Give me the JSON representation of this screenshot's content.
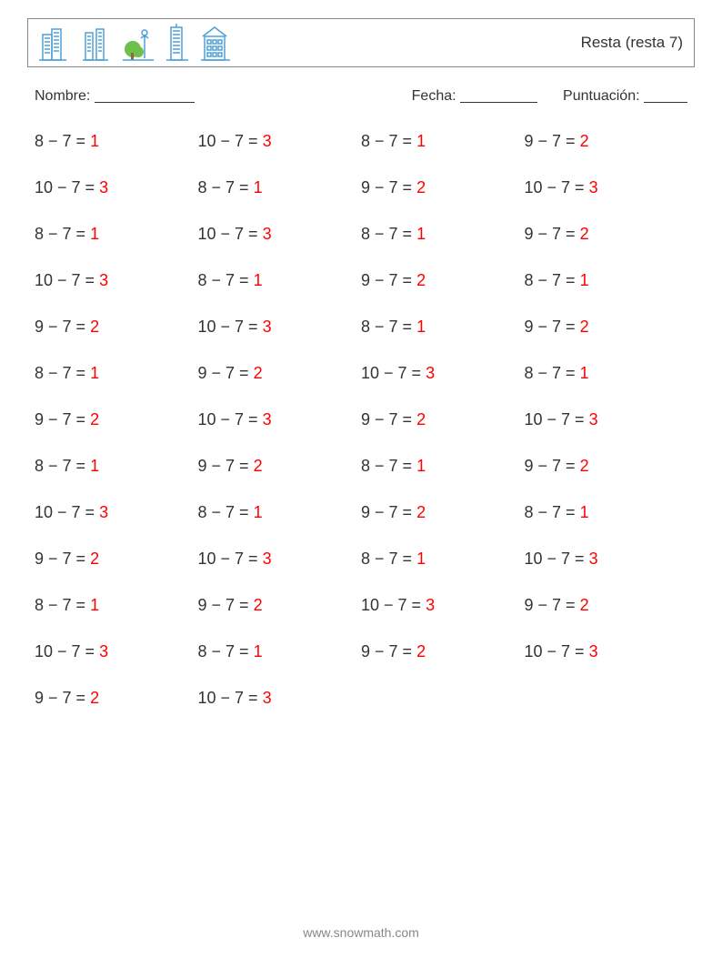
{
  "header": {
    "title": "Resta (resta 7)"
  },
  "meta": {
    "name_label": "Nombre:",
    "date_label": "Fecha:",
    "score_label": "Puntuación:",
    "name_blank_width": 110,
    "date_blank_width": 85,
    "score_blank_width": 48
  },
  "icons": {
    "stroke": "#4da0d8",
    "tree_fill": "#6fbf4b"
  },
  "problems_style": {
    "equation_color": "#333333",
    "answer_color": "#ff0000",
    "font_size": 18
  },
  "problems": [
    [
      {
        "a": 8,
        "b": 7,
        "ans": 1
      },
      {
        "a": 10,
        "b": 7,
        "ans": 3
      },
      {
        "a": 8,
        "b": 7,
        "ans": 1
      },
      {
        "a": 9,
        "b": 7,
        "ans": 2
      }
    ],
    [
      {
        "a": 10,
        "b": 7,
        "ans": 3
      },
      {
        "a": 8,
        "b": 7,
        "ans": 1
      },
      {
        "a": 9,
        "b": 7,
        "ans": 2
      },
      {
        "a": 10,
        "b": 7,
        "ans": 3
      }
    ],
    [
      {
        "a": 8,
        "b": 7,
        "ans": 1
      },
      {
        "a": 10,
        "b": 7,
        "ans": 3
      },
      {
        "a": 8,
        "b": 7,
        "ans": 1
      },
      {
        "a": 9,
        "b": 7,
        "ans": 2
      }
    ],
    [
      {
        "a": 10,
        "b": 7,
        "ans": 3
      },
      {
        "a": 8,
        "b": 7,
        "ans": 1
      },
      {
        "a": 9,
        "b": 7,
        "ans": 2
      },
      {
        "a": 8,
        "b": 7,
        "ans": 1
      }
    ],
    [
      {
        "a": 9,
        "b": 7,
        "ans": 2
      },
      {
        "a": 10,
        "b": 7,
        "ans": 3
      },
      {
        "a": 8,
        "b": 7,
        "ans": 1
      },
      {
        "a": 9,
        "b": 7,
        "ans": 2
      }
    ],
    [
      {
        "a": 8,
        "b": 7,
        "ans": 1
      },
      {
        "a": 9,
        "b": 7,
        "ans": 2
      },
      {
        "a": 10,
        "b": 7,
        "ans": 3
      },
      {
        "a": 8,
        "b": 7,
        "ans": 1
      }
    ],
    [
      {
        "a": 9,
        "b": 7,
        "ans": 2
      },
      {
        "a": 10,
        "b": 7,
        "ans": 3
      },
      {
        "a": 9,
        "b": 7,
        "ans": 2
      },
      {
        "a": 10,
        "b": 7,
        "ans": 3
      }
    ],
    [
      {
        "a": 8,
        "b": 7,
        "ans": 1
      },
      {
        "a": 9,
        "b": 7,
        "ans": 2
      },
      {
        "a": 8,
        "b": 7,
        "ans": 1
      },
      {
        "a": 9,
        "b": 7,
        "ans": 2
      }
    ],
    [
      {
        "a": 10,
        "b": 7,
        "ans": 3
      },
      {
        "a": 8,
        "b": 7,
        "ans": 1
      },
      {
        "a": 9,
        "b": 7,
        "ans": 2
      },
      {
        "a": 8,
        "b": 7,
        "ans": 1
      }
    ],
    [
      {
        "a": 9,
        "b": 7,
        "ans": 2
      },
      {
        "a": 10,
        "b": 7,
        "ans": 3
      },
      {
        "a": 8,
        "b": 7,
        "ans": 1
      },
      {
        "a": 10,
        "b": 7,
        "ans": 3
      }
    ],
    [
      {
        "a": 8,
        "b": 7,
        "ans": 1
      },
      {
        "a": 9,
        "b": 7,
        "ans": 2
      },
      {
        "a": 10,
        "b": 7,
        "ans": 3
      },
      {
        "a": 9,
        "b": 7,
        "ans": 2
      }
    ],
    [
      {
        "a": 10,
        "b": 7,
        "ans": 3
      },
      {
        "a": 8,
        "b": 7,
        "ans": 1
      },
      {
        "a": 9,
        "b": 7,
        "ans": 2
      },
      {
        "a": 10,
        "b": 7,
        "ans": 3
      }
    ],
    [
      {
        "a": 9,
        "b": 7,
        "ans": 2
      },
      {
        "a": 10,
        "b": 7,
        "ans": 3
      },
      null,
      null
    ]
  ],
  "footer": {
    "url": "www.snowmath.com"
  }
}
